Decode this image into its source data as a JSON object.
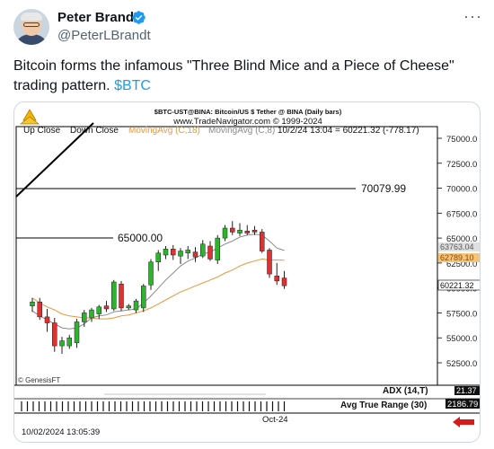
{
  "author": {
    "name": "Peter Brandt",
    "handle": "@PeterLBrandt"
  },
  "tweet": {
    "text": "Bitcoin forms the infamous \"Three Blind Mice and a Piece of Cheese\" trading pattern.",
    "cashtag": "$BTC"
  },
  "menu": {
    "more_label": "···"
  },
  "chart_data": {
    "type": "candlestick",
    "header_line1": "$BTC-UST@BINA:  Bitcoin/US $ Tether @ BINA  (Daily bars)",
    "header_line2": "www.TradeNavigator.com © 1999-2024",
    "legend": {
      "up_close": "Up Close",
      "down_close": "Down Close",
      "ma18": "MovingAvg (C,18)",
      "ma8": "MovingAvg (C,8)",
      "last_bar": "10/2/24 13:04 = 60221.32 (-778.17)"
    },
    "y_ticks": [
      "75000.0",
      "72500.0",
      "70000.0",
      "67500.0",
      "65000.0",
      "62500.0",
      "60000.0",
      "57500.0",
      "55000.0",
      "52500.0"
    ],
    "price_tags": {
      "ma8": "63763.04",
      "ma18": "62789.10",
      "last": "60221.32"
    },
    "annotations": {
      "level_70k": "70079.99",
      "level_65k": "65000.00"
    },
    "watermark": "© GenesisFT",
    "adx_label": "ADX (14,T)",
    "adx_value": "21.37",
    "atr_label": "Avg True Range (30)",
    "atr_value": "2186.79",
    "x_label": "Oct-24",
    "timestamp": "10/02/2024 13:05:39",
    "ylim": [
      50000,
      76000
    ],
    "candles": [
      {
        "o": 58200,
        "h": 59000,
        "l": 57600,
        "c": 58600
      },
      {
        "o": 58600,
        "h": 59000,
        "l": 56800,
        "c": 57100
      },
      {
        "o": 57100,
        "h": 57900,
        "l": 55600,
        "c": 56500
      },
      {
        "o": 56500,
        "h": 57000,
        "l": 53600,
        "c": 54200
      },
      {
        "o": 54200,
        "h": 55100,
        "l": 53400,
        "c": 54700
      },
      {
        "o": 54200,
        "h": 55300,
        "l": 53900,
        "c": 55000
      },
      {
        "o": 54500,
        "h": 56900,
        "l": 54000,
        "c": 56600
      },
      {
        "o": 56600,
        "h": 57800,
        "l": 56100,
        "c": 57500
      },
      {
        "o": 57000,
        "h": 58000,
        "l": 56600,
        "c": 57800
      },
      {
        "o": 57400,
        "h": 58300,
        "l": 56900,
        "c": 58100
      },
      {
        "o": 58200,
        "h": 58700,
        "l": 57600,
        "c": 57900
      },
      {
        "o": 57900,
        "h": 60800,
        "l": 57700,
        "c": 60600
      },
      {
        "o": 60400,
        "h": 60700,
        "l": 57700,
        "c": 58000
      },
      {
        "o": 58000,
        "h": 58400,
        "l": 57800,
        "c": 58200
      },
      {
        "o": 57800,
        "h": 58900,
        "l": 57500,
        "c": 58700
      },
      {
        "o": 58000,
        "h": 60400,
        "l": 57600,
        "c": 60200
      },
      {
        "o": 60300,
        "h": 62900,
        "l": 59800,
        "c": 62600
      },
      {
        "o": 62600,
        "h": 63800,
        "l": 61700,
        "c": 63500
      },
      {
        "o": 63300,
        "h": 64200,
        "l": 62900,
        "c": 63900
      },
      {
        "o": 63900,
        "h": 64300,
        "l": 62800,
        "c": 63300
      },
      {
        "o": 63200,
        "h": 64000,
        "l": 62400,
        "c": 63700
      },
      {
        "o": 63500,
        "h": 64200,
        "l": 62900,
        "c": 63800
      },
      {
        "o": 63600,
        "h": 64100,
        "l": 62600,
        "c": 63100
      },
      {
        "o": 63200,
        "h": 64800,
        "l": 63000,
        "c": 64400
      },
      {
        "o": 64200,
        "h": 64700,
        "l": 62700,
        "c": 62900
      },
      {
        "o": 62800,
        "h": 65300,
        "l": 62400,
        "c": 65000
      },
      {
        "o": 65000,
        "h": 66300,
        "l": 64700,
        "c": 66000
      },
      {
        "o": 66000,
        "h": 66700,
        "l": 65300,
        "c": 65600
      },
      {
        "o": 65500,
        "h": 66500,
        "l": 65200,
        "c": 65800
      },
      {
        "o": 65700,
        "h": 66300,
        "l": 65300,
        "c": 65500
      },
      {
        "o": 65800,
        "h": 66200,
        "l": 65300,
        "c": 65600
      },
      {
        "o": 65600,
        "h": 65900,
        "l": 63500,
        "c": 63700
      },
      {
        "o": 63800,
        "h": 64000,
        "l": 61000,
        "c": 61400
      },
      {
        "o": 61200,
        "h": 62500,
        "l": 60300,
        "c": 60700
      },
      {
        "o": 61000,
        "h": 61700,
        "l": 59900,
        "c": 60221
      }
    ],
    "ma8": [
      57700,
      57200,
      56800,
      56400,
      56000,
      55900,
      56000,
      56400,
      57000,
      57200,
      57300,
      57600,
      57700,
      57800,
      57900,
      58500,
      59200,
      60000,
      60800,
      61500,
      62200,
      62700,
      63000,
      63400,
      63600,
      64000,
      64400,
      64700,
      65100,
      65300,
      65400,
      65300,
      64700,
      64000,
      63763
    ],
    "ma18": [
      59000,
      58500,
      58100,
      57800,
      57400,
      57200,
      57100,
      57000,
      57000,
      56900,
      56900,
      57000,
      57200,
      57300,
      57500,
      57700,
      58000,
      58400,
      58800,
      59200,
      59600,
      59900,
      60200,
      60500,
      60800,
      61100,
      61500,
      61800,
      62200,
      62500,
      62700,
      62900,
      62800,
      62800,
      62789
    ]
  }
}
